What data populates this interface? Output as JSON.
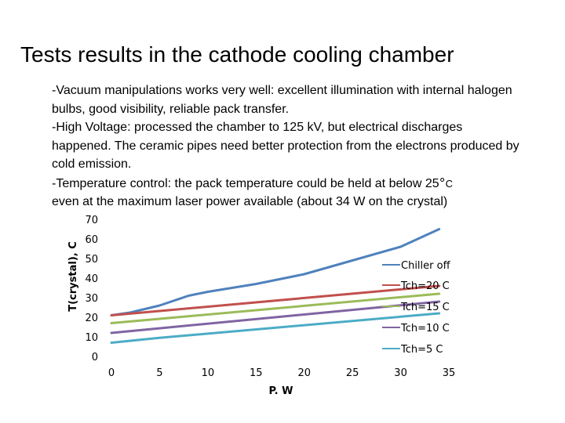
{
  "slide": {
    "title": "Tests results in the cathode cooling chamber",
    "bullets": [
      "-Vacuum manipulations works very well: excellent illumination with internal halogen bulbs, good visibility, reliable pack transfer.",
      "-High Voltage: processed the chamber to 125 kV, but electrical discharges happened. The ceramic pipes need better protection from the electrons produced by cold emission.",
      "-Temperature control: the pack temperature could be held at below 25",
      "even at the maximum laser power available (about 34 W on the crystal)"
    ],
    "degree_sign": "°",
    "celsius": "C"
  },
  "chart_data": {
    "type": "line",
    "xlabel": "P. W",
    "ylabel": "T(crystal), C",
    "xlim": [
      0,
      35
    ],
    "ylim": [
      0,
      70
    ],
    "x_ticks": [
      0,
      5,
      10,
      15,
      20,
      25,
      30,
      35
    ],
    "y_ticks": [
      0,
      10,
      20,
      30,
      40,
      50,
      60,
      70
    ],
    "grid": false,
    "legend_position": "right",
    "series": [
      {
        "name": "Chiller off",
        "color": "#4F81BD",
        "x": [
          0,
          2,
          5,
          8,
          10,
          15,
          20,
          25,
          30,
          34
        ],
        "y": [
          21,
          22.5,
          26,
          31,
          33,
          37,
          42,
          49,
          56,
          65
        ]
      },
      {
        "name": "Tch=20 C",
        "color": "#C0504D",
        "x": [
          0,
          34
        ],
        "y": [
          21,
          36
        ]
      },
      {
        "name": "Tch=15 C",
        "color": "#9BBB59",
        "x": [
          0,
          34
        ],
        "y": [
          17,
          32
        ]
      },
      {
        "name": "Tch=10 C",
        "color": "#8064A2",
        "x": [
          0,
          34
        ],
        "y": [
          12,
          28
        ]
      },
      {
        "name": "Tch=5 C",
        "color": "#4BACC6",
        "x": [
          0,
          5,
          34
        ],
        "y": [
          7,
          9.5,
          22
        ]
      }
    ]
  }
}
